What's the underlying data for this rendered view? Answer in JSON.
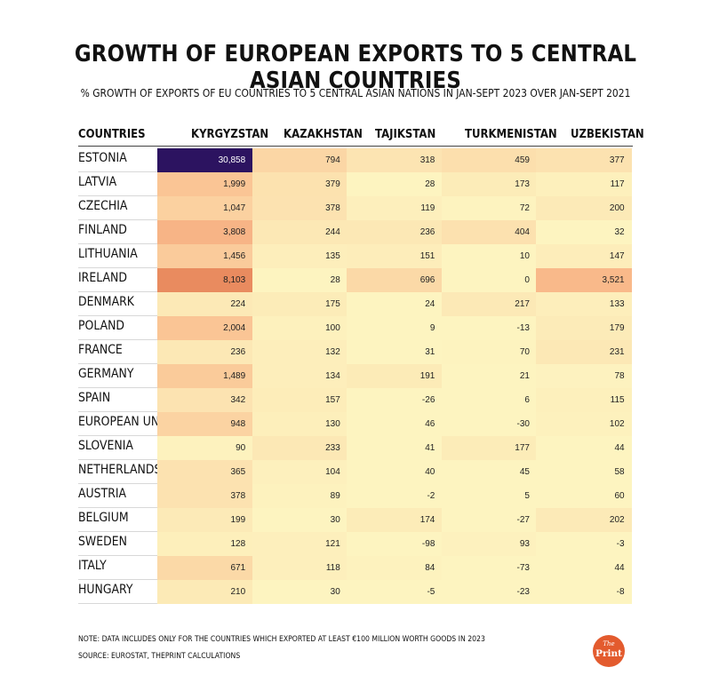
{
  "header": {
    "title": "GROWTH OF EUROPEAN EXPORTS TO 5 CENTRAL ASIAN COUNTRIES",
    "subtitle": "% GROWTH OF EXPORTS OF EU COUNTRIES TO 5 CENTRAL ASIAN NATIONS IN JAN-SEPT 2023 OVER JAN-SEPT 2021"
  },
  "footer": {
    "note": "NOTE: DATA INCLUDES ONLY FOR THE COUNTRIES WHICH EXPORTED AT LEAST €100 MILLION WORTH GOODS IN 2023",
    "source": "SOURCE: EUROSTAT, THEPRINT CALCULATIONS",
    "logo_the": "The",
    "logo_print": "Print"
  },
  "colors": {
    "low": "#fdf4c0",
    "mid": "#f9b98a",
    "high": "#e98a5e",
    "max": "#2c1360",
    "logo": "#e35b2e"
  },
  "chart_data": {
    "type": "heatmap",
    "title": "GROWTH OF EUROPEAN EXPORTS TO 5 CENTRAL ASIAN COUNTRIES",
    "subtitle": "% GROWTH OF EXPORTS OF EU COUNTRIES TO 5 CENTRAL ASIAN NATIONS IN JAN-SEPT 2023 OVER JAN-SEPT 2021",
    "row_header": "COUNTRIES",
    "columns": [
      "KYRGYZSTAN",
      "KAZAKHSTAN",
      "TAJIKSTAN",
      "TURKMENISTAN",
      "UZBEKISTAN"
    ],
    "rows": [
      {
        "label": "ESTONIA",
        "values": [
          30858,
          794,
          318,
          459,
          377
        ],
        "display": [
          "30,858",
          "794",
          "318",
          "459",
          "377"
        ]
      },
      {
        "label": "LATVIA",
        "values": [
          1999,
          379,
          28,
          173,
          117
        ],
        "display": [
          "1,999",
          "379",
          "28",
          "173",
          "117"
        ]
      },
      {
        "label": "CZECHIA",
        "values": [
          1047,
          378,
          119,
          72,
          200
        ],
        "display": [
          "1,047",
          "378",
          "119",
          "72",
          "200"
        ]
      },
      {
        "label": "FINLAND",
        "values": [
          3808,
          244,
          236,
          404,
          32
        ],
        "display": [
          "3,808",
          "244",
          "236",
          "404",
          "32"
        ]
      },
      {
        "label": "LITHUANIA",
        "values": [
          1456,
          135,
          151,
          10,
          147
        ],
        "display": [
          "1,456",
          "135",
          "151",
          "10",
          "147"
        ]
      },
      {
        "label": "IRELAND",
        "values": [
          8103,
          28,
          696,
          0,
          3521
        ],
        "display": [
          "8,103",
          "28",
          "696",
          "0",
          "3,521"
        ]
      },
      {
        "label": "DENMARK",
        "values": [
          224,
          175,
          24,
          217,
          133
        ],
        "display": [
          "224",
          "175",
          "24",
          "217",
          "133"
        ]
      },
      {
        "label": "POLAND",
        "values": [
          2004,
          100,
          9,
          -13,
          179
        ],
        "display": [
          "2,004",
          "100",
          "9",
          "-13",
          "179"
        ]
      },
      {
        "label": "FRANCE",
        "values": [
          236,
          132,
          31,
          70,
          231
        ],
        "display": [
          "236",
          "132",
          "31",
          "70",
          "231"
        ]
      },
      {
        "label": "GERMANY",
        "values": [
          1489,
          134,
          191,
          21,
          78
        ],
        "display": [
          "1,489",
          "134",
          "191",
          "21",
          "78"
        ]
      },
      {
        "label": "SPAIN",
        "values": [
          342,
          157,
          -26,
          6,
          115
        ],
        "display": [
          "342",
          "157",
          "-26",
          "6",
          "115"
        ]
      },
      {
        "label": "EUROPEAN UNION",
        "values": [
          948,
          130,
          46,
          -30,
          102
        ],
        "display": [
          "948",
          "130",
          "46",
          "-30",
          "102"
        ]
      },
      {
        "label": "SLOVENIA",
        "values": [
          90,
          233,
          41,
          177,
          44
        ],
        "display": [
          "90",
          "233",
          "41",
          "177",
          "44"
        ]
      },
      {
        "label": "NETHERLANDS",
        "values": [
          365,
          104,
          40,
          45,
          58
        ],
        "display": [
          "365",
          "104",
          "40",
          "45",
          "58"
        ]
      },
      {
        "label": "AUSTRIA",
        "values": [
          378,
          89,
          -2,
          5,
          60
        ],
        "display": [
          "378",
          "89",
          "-2",
          "5",
          "60"
        ]
      },
      {
        "label": "BELGIUM",
        "values": [
          199,
          30,
          174,
          -27,
          202
        ],
        "display": [
          "199",
          "30",
          "174",
          "-27",
          "202"
        ]
      },
      {
        "label": "SWEDEN",
        "values": [
          128,
          121,
          -98,
          93,
          -3
        ],
        "display": [
          "128",
          "121",
          "-98",
          "93",
          "-3"
        ]
      },
      {
        "label": "ITALY",
        "values": [
          671,
          118,
          84,
          -73,
          44
        ],
        "display": [
          "671",
          "118",
          "84",
          "-73",
          "44"
        ]
      },
      {
        "label": "HUNGARY",
        "values": [
          210,
          30,
          -5,
          -23,
          -8
        ],
        "display": [
          "210",
          "30",
          "-5",
          "-23",
          "-8"
        ]
      }
    ]
  }
}
